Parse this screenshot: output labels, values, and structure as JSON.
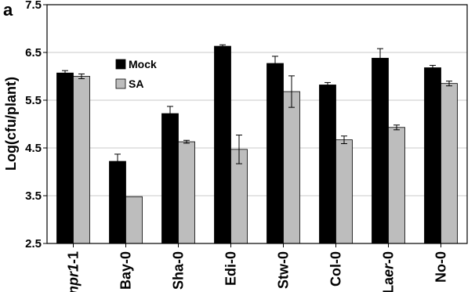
{
  "chart_data": {
    "type": "bar",
    "panel_label": "a",
    "ylabel": "Log(cfu/plant)",
    "xlabel": "",
    "ylim": [
      2.5,
      7.5
    ],
    "yticks": [
      "2.5",
      "3.5",
      "4.5",
      "5.5",
      "6.5",
      "7.5"
    ],
    "grid": true,
    "legend_position": "top-left",
    "categories": [
      "npr1-1",
      "Bay-0",
      "Sha-0",
      "Edi-0",
      "Stw-0",
      "Col-0",
      "Laer-0",
      "No-0"
    ],
    "category_parts": [
      [
        {
          "t": "npr1",
          "i": true
        },
        {
          "t": "-1",
          "i": false
        }
      ],
      [
        {
          "t": "Bay-0",
          "i": false
        }
      ],
      [
        {
          "t": "Sha-0",
          "i": false
        }
      ],
      [
        {
          "t": "Edi-0",
          "i": false
        }
      ],
      [
        {
          "t": "Stw-0",
          "i": false
        }
      ],
      [
        {
          "t": "Col-0",
          "i": false
        }
      ],
      [
        {
          "t": "La",
          "i": false
        },
        {
          "t": "er",
          "i": true
        },
        {
          "t": "-0",
          "i": false
        }
      ],
      [
        {
          "t": "No-0",
          "i": false
        }
      ]
    ],
    "series": [
      {
        "name": "Mock",
        "color": "#000000",
        "values": [
          6.07,
          4.22,
          5.22,
          6.63,
          6.27,
          5.82,
          6.38,
          6.18
        ],
        "errors": [
          0.05,
          0.15,
          0.15,
          0.03,
          0.15,
          0.05,
          0.2,
          0.05
        ]
      },
      {
        "name": "SA",
        "color": "#bdbdbd",
        "values": [
          6.0,
          3.48,
          4.63,
          4.47,
          5.68,
          4.67,
          4.93,
          5.85
        ],
        "errors": [
          0.05,
          0.0,
          0.03,
          0.3,
          0.33,
          0.08,
          0.05,
          0.05
        ]
      }
    ]
  }
}
